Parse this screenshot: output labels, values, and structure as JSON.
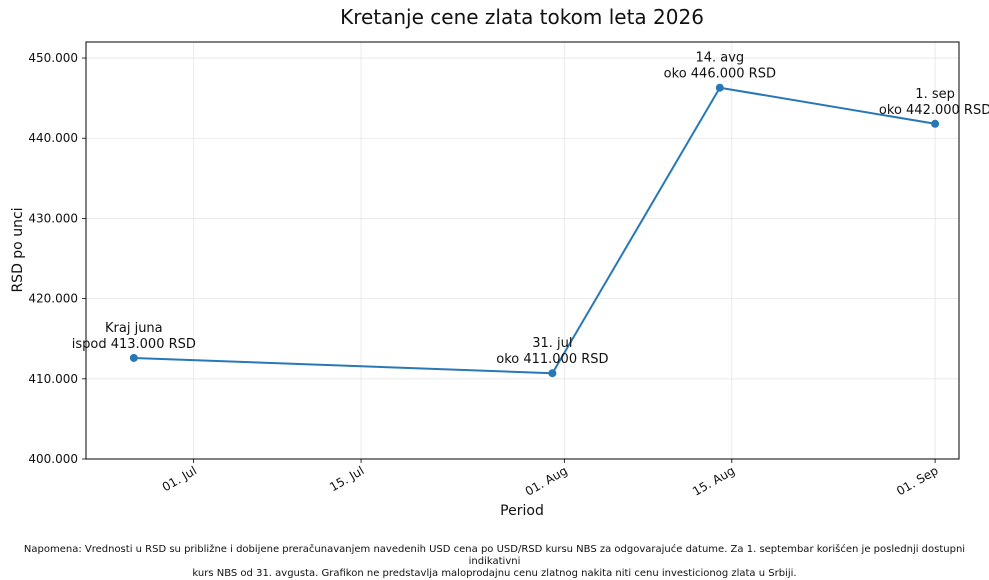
{
  "chart_data": {
    "type": "line",
    "title": "Kretanje cene zlata tokom leta 2026",
    "xlabel": "Period",
    "ylabel": "RSD po unci",
    "x_ticks": [
      "01. Jul",
      "15. Jul",
      "01. Aug",
      "15. Aug",
      "01. Sep"
    ],
    "x_tick_dates": [
      "2026-07-01",
      "2026-07-15",
      "2026-08-01",
      "2026-08-15",
      "2026-09-01"
    ],
    "xlim": [
      "2026-06-22",
      "2026-09-03"
    ],
    "y_ticks": [
      "400.000",
      "410.000",
      "420.000",
      "430.000",
      "440.000",
      "450.000"
    ],
    "y_tick_values": [
      400000,
      410000,
      420000,
      430000,
      440000,
      450000
    ],
    "ylim": [
      400000,
      452000
    ],
    "grid": true,
    "series_color": "#2878b5",
    "points": [
      {
        "x": "2026-06-26",
        "y": 412600,
        "label_lines": [
          "Kraj juna",
          "ispod 413.000 RSD"
        ]
      },
      {
        "x": "2026-07-31",
        "y": 410700,
        "label_lines": [
          "31. jul",
          "oko 411.000 RSD"
        ]
      },
      {
        "x": "2026-08-14",
        "y": 446300,
        "label_lines": [
          "14. avg",
          "oko 446.000 RSD"
        ]
      },
      {
        "x": "2026-09-01",
        "y": 441800,
        "label_lines": [
          "1. sep",
          "oko 442.000 RSD"
        ]
      }
    ]
  },
  "footnote": {
    "line1": "Napomena: Vrednosti u RSD su približne i dobijene preračunavanjem navedenih USD cena po USD/RSD kursu NBS za odgovarajuće datume. Za 1. septembar korišćen je poslednji dostupni indikativni",
    "line2": "kurs NBS od 31. avgusta. Grafikon ne predstavlja maloprodajnu cenu zlatnog nakita niti cenu investicionog zlata u Srbiji."
  }
}
